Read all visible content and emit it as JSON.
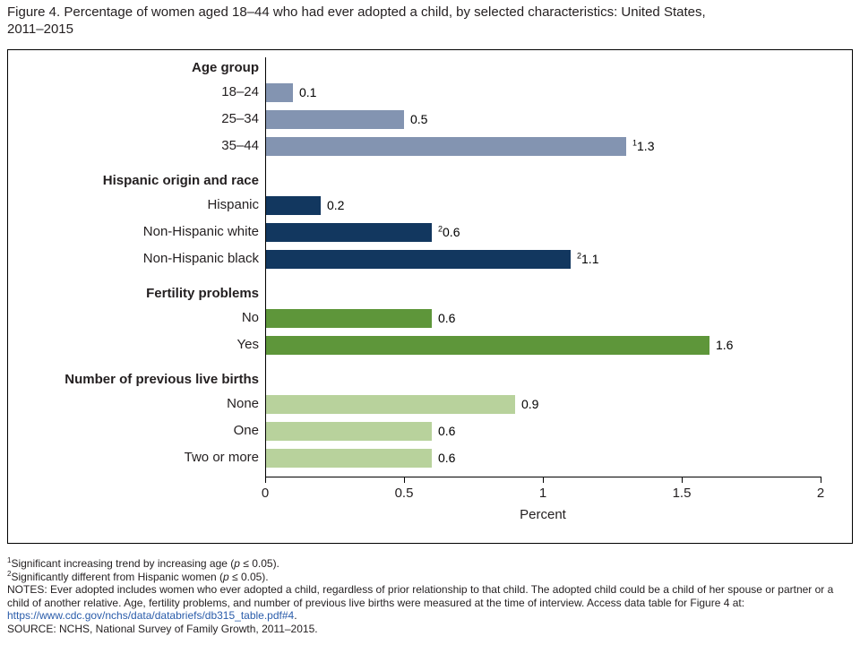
{
  "title": {
    "line1": "Figure 4. Percentage of women aged 18–44 who had ever adopted a child, by selected characteristics: United States,",
    "line2": "2011–2015"
  },
  "chart_data": {
    "type": "bar",
    "orientation": "horizontal",
    "title": "Percentage of women aged 18–44 who had ever adopted a child, by selected characteristics: United States, 2011–2015",
    "xlabel": "Percent",
    "xlim": [
      0,
      2
    ],
    "xticks": [
      "0",
      "0.5",
      "1",
      "1.5",
      "2"
    ],
    "xtick_values": [
      0,
      0.5,
      1,
      1.5,
      2
    ],
    "grid": false,
    "groups": [
      {
        "label": "Age group",
        "color": "#8394b1",
        "bars": [
          {
            "label": "18–24",
            "value": 0.1,
            "value_label": "0.1",
            "sup": ""
          },
          {
            "label": "25–34",
            "value": 0.5,
            "value_label": "0.5",
            "sup": ""
          },
          {
            "label": "35–44",
            "value": 1.3,
            "value_label": "1.3",
            "sup": "1"
          }
        ]
      },
      {
        "label": "Hispanic origin and race",
        "color": "#12375f",
        "bars": [
          {
            "label": "Hispanic",
            "value": 0.2,
            "value_label": "0.2",
            "sup": ""
          },
          {
            "label": "Non-Hispanic white",
            "value": 0.6,
            "value_label": "0.6",
            "sup": "2"
          },
          {
            "label": "Non-Hispanic black",
            "value": 1.1,
            "value_label": "1.1",
            "sup": "2"
          }
        ]
      },
      {
        "label": "Fertility problems",
        "color": "#5e963a",
        "bars": [
          {
            "label": "No",
            "value": 0.6,
            "value_label": "0.6",
            "sup": ""
          },
          {
            "label": "Yes",
            "value": 1.6,
            "value_label": "1.6",
            "sup": ""
          }
        ]
      },
      {
        "label": "Number of previous live births",
        "color": "#b8d29c",
        "bars": [
          {
            "label": "None",
            "value": 0.9,
            "value_label": "0.9",
            "sup": ""
          },
          {
            "label": "One",
            "value": 0.6,
            "value_label": "0.6",
            "sup": ""
          },
          {
            "label": "Two or more",
            "value": 0.6,
            "value_label": "0.6",
            "sup": ""
          }
        ]
      }
    ]
  },
  "footnotes": [
    {
      "sup": "1",
      "pre": "Significant increasing trend by increasing age (",
      "italic": "p",
      "post": " ≤ 0.05)."
    },
    {
      "sup": "2",
      "pre": "Significantly different from Hispanic women (",
      "italic": "p",
      "post": " ≤ 0.05)."
    }
  ],
  "notes": {
    "pre": "NOTES: Ever adopted includes women who ever adopted a child, regardless of prior relationship to that child. The adopted child could be a child of her spouse or partner or a child of another relative. Age, fertility problems, and number of previous live births were measured at the time of interview. Access data table for Figure 4 at: ",
    "url": "https://www.cdc.gov/nchs/data/databriefs/db315_table.pdf#4",
    "post": "."
  },
  "source": "SOURCE: NCHS, National Survey of Family Growth, 2011–2015."
}
